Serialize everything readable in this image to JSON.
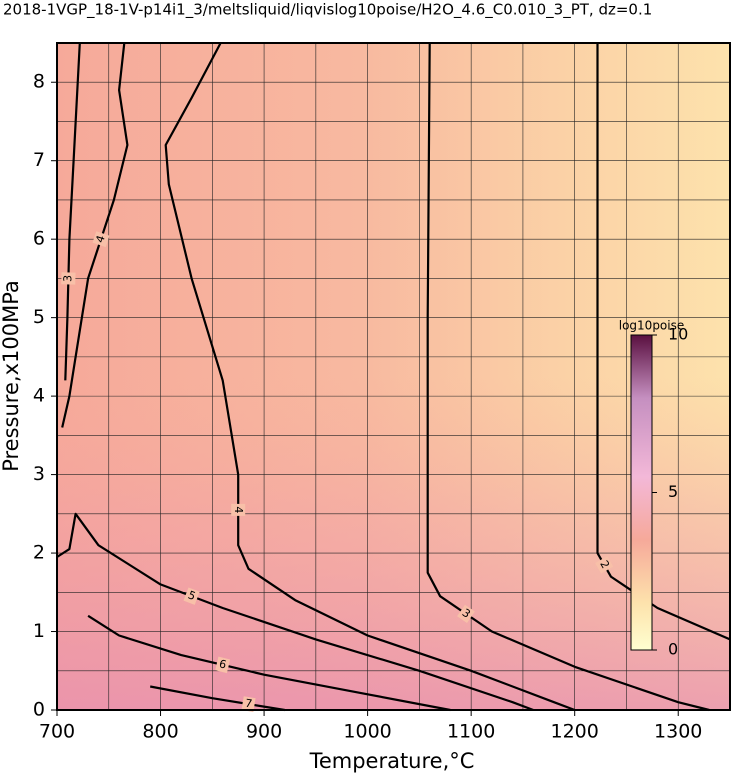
{
  "chart_data": {
    "type": "contour",
    "title": "2018-1VGP_18-1V-p14i1_3/meltsliquid/liqvislog10poise/H2O_4.6_C0.010_3_PT, dz=0.1",
    "xlabel": "Temperature,°C",
    "ylabel": "Pressure,x100MPa",
    "xlim": [
      700,
      1350
    ],
    "ylim": [
      0,
      8.5
    ],
    "xticks": [
      700,
      800,
      900,
      1000,
      1100,
      1200,
      1300
    ],
    "yticks": [
      0,
      1,
      2,
      3,
      4,
      5,
      6,
      7,
      8
    ],
    "xminorticks": [
      750,
      850,
      950,
      1050,
      1150,
      1250
    ],
    "yminorticks": [
      0.5,
      1.5,
      2.5,
      3.5,
      4.5,
      5.5,
      6.5,
      7.5
    ],
    "grid": true,
    "series": [
      {
        "level": 2,
        "x": [
          1222,
          1222,
          1222,
          1235,
          1280,
          1350
        ],
        "y": [
          8.5,
          5.5,
          2.0,
          1.7,
          1.3,
          0.9
        ]
      },
      {
        "level": 3,
        "x": [
          1060,
          1058,
          1058,
          1070,
          1120,
          1200,
          1300,
          1330
        ],
        "y": [
          8.5,
          5.0,
          1.75,
          1.45,
          1.0,
          0.55,
          0.1,
          0
        ]
      },
      {
        "level": 4,
        "x": [
          858,
          830,
          805,
          808,
          830,
          860,
          875,
          875,
          885,
          930,
          1000,
          1100,
          1180,
          1200
        ],
        "y": [
          8.5,
          7.8,
          7.2,
          6.7,
          5.5,
          4.2,
          3.0,
          2.1,
          1.8,
          1.4,
          0.95,
          0.5,
          0.1,
          0
        ]
      },
      {
        "level": 4,
        "x": [
          765,
          760,
          768,
          755,
          730,
          718,
          712,
          705
        ],
        "y": [
          8.5,
          7.9,
          7.2,
          6.5,
          5.5,
          4.5,
          4.0,
          3.6
        ]
      },
      {
        "level": 5,
        "x": [
          700,
          712,
          718,
          740,
          800,
          860,
          950,
          1050,
          1140,
          1160
        ],
        "y": [
          1.95,
          2.05,
          2.5,
          2.1,
          1.6,
          1.3,
          0.9,
          0.5,
          0.1,
          0
        ]
      },
      {
        "level": 6,
        "x": [
          730,
          760,
          820,
          900,
          1000,
          1080
        ],
        "y": [
          1.2,
          0.95,
          0.7,
          0.45,
          0.2,
          0
        ]
      },
      {
        "level": 7,
        "x": [
          790,
          850,
          920
        ],
        "y": [
          0.3,
          0.15,
          0
        ]
      },
      {
        "level": 3,
        "x": [
          722,
          716,
          712,
          710,
          708
        ],
        "y": [
          8.5,
          7.0,
          6.0,
          5.0,
          4.2
        ]
      }
    ],
    "colorbar": {
      "label": "log10poise",
      "lim": [
        0,
        10
      ],
      "ticks": [
        0,
        5,
        10
      ]
    }
  }
}
